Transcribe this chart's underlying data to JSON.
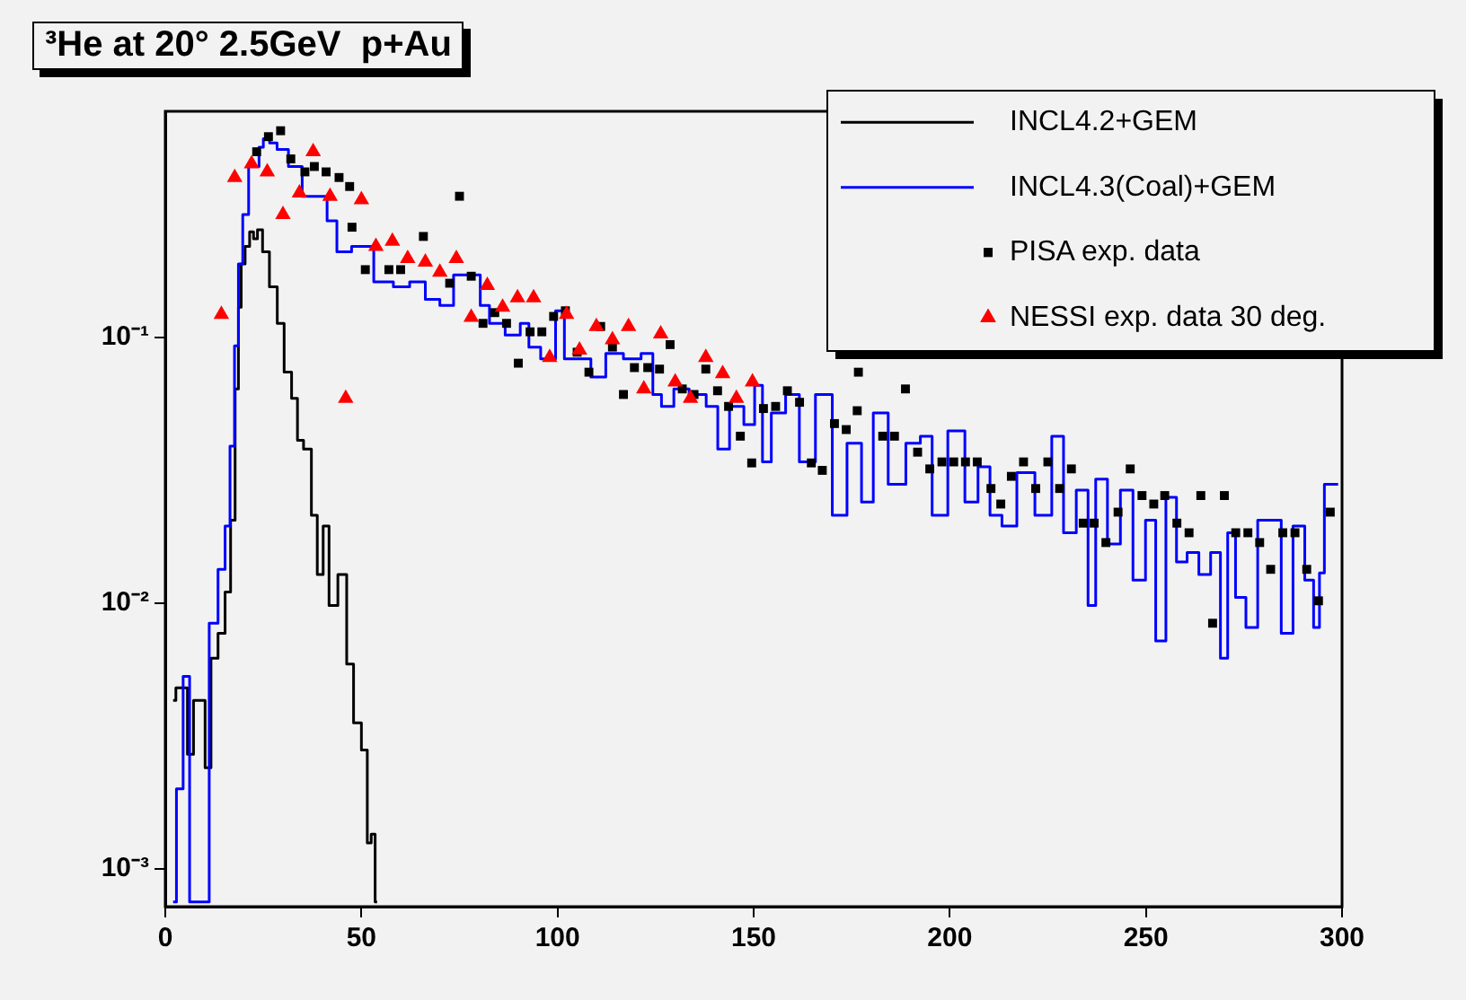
{
  "chart_data": {
    "type": "scatter",
    "title": "³He at 20° 2.5GeV  p+Au",
    "xlim": [
      0,
      300
    ],
    "xticks": [
      0,
      50,
      100,
      150,
      200,
      250,
      300
    ],
    "ylim": [
      0.00072,
      0.71
    ],
    "log": "y",
    "yticks": [
      {
        "value": 0.001,
        "label": "10⁻³"
      },
      {
        "value": 0.01,
        "label": "10⁻²"
      },
      {
        "value": 0.1,
        "label": "10⁻¹"
      }
    ],
    "grid": false,
    "legend": "top right",
    "series": [
      {
        "name": "INCL4.2+GEM",
        "type": "step",
        "color": "#000000",
        "marker": "none",
        "line_style": "solid",
        "x": [
          2,
          3.4,
          4.9,
          6.4,
          8,
          9.4,
          10.9,
          12.4,
          14.5,
          16,
          17.3,
          18.3,
          19,
          19.7,
          21,
          22,
          23,
          24,
          25.6,
          27.5,
          29.6,
          31,
          33.4,
          34,
          36.5,
          38,
          39.5,
          41,
          42.5,
          45.5,
          47,
          49,
          51,
          52,
          53,
          54
        ],
        "values": [
          0.0043,
          0.0048,
          0.0048,
          0.0027,
          0.0043,
          0.0043,
          0.0024,
          0.0062,
          0.0077,
          0.011,
          0.0205,
          0.064,
          0.13,
          0.189,
          0.22,
          0.25,
          0.235,
          0.254,
          0.21,
          0.155,
          0.113,
          0.074,
          0.059,
          0.041,
          0.038,
          0.0214,
          0.0128,
          0.0195,
          0.0098,
          0.0128,
          0.0059,
          0.00354,
          0.0028,
          0.00125,
          0.00135,
          0.00075
        ]
      },
      {
        "name": "INCL4.3(Coal)+GEM",
        "type": "step",
        "color": "#0000ff",
        "marker": "none",
        "line_style": "solid",
        "x": [
          2,
          3.7,
          5.4,
          7,
          10,
          12.4,
          14.5,
          16,
          17,
          18.3,
          19,
          20.5,
          22,
          23.5,
          24.3,
          25.7,
          27.5,
          29.5,
          33.3,
          36.5,
          40,
          42.5,
          45,
          50,
          56.3,
          60,
          64.6,
          68,
          72,
          75,
          79.6,
          81,
          84.3,
          89,
          92,
          93.4,
          98,
          101,
          102.5,
          107,
          110,
          114.6,
          119,
          123.6,
          125,
          128,
          131.3,
          135.8,
          140,
          141.7,
          146,
          149,
          151.5,
          153,
          156,
          160.3,
          163,
          168.5,
          171.6,
          176,
          179,
          182,
          186.6,
          191,
          194,
          197,
          202,
          205.7,
          208.7,
          211.8,
          214.8,
          219.4,
          224,
          228,
          230,
          234.5,
          236,
          238.4,
          242,
          245,
          248.4,
          251.4,
          253.6,
          256.6,
          259,
          262,
          265,
          268,
          270,
          271.7,
          274,
          277,
          280,
          283,
          286,
          289,
          292,
          293.5,
          295,
          296,
          299
        ],
        "values": [
          0.00075,
          0.002,
          0.0053,
          0.00075,
          0.00075,
          0.0084,
          0.0134,
          0.0195,
          0.039,
          0.093,
          0.189,
          0.29,
          0.44,
          0.44,
          0.52,
          0.56,
          0.54,
          0.51,
          0.44,
          0.34,
          0.34,
          0.275,
          0.21,
          0.22,
          0.162,
          0.155,
          0.162,
          0.139,
          0.132,
          0.172,
          0.172,
          0.132,
          0.113,
          0.102,
          0.113,
          0.092,
          0.083,
          0.126,
          0.083,
          0.083,
          0.071,
          0.087,
          0.083,
          0.087,
          0.061,
          0.055,
          0.064,
          0.061,
          0.055,
          0.038,
          0.055,
          0.047,
          0.066,
          0.034,
          0.052,
          0.061,
          0.034,
          0.061,
          0.0214,
          0.04,
          0.024,
          0.052,
          0.028,
          0.04,
          0.0425,
          0.0214,
          0.0445,
          0.024,
          0.0326,
          0.0214,
          0.0195,
          0.031,
          0.0214,
          0.0425,
          0.0184,
          0.0266,
          0.0098,
          0.0293,
          0.0167,
          0.0266,
          0.0122,
          0.0205,
          0.0072,
          0.025,
          0.0143,
          0.0155,
          0.0128,
          0.0155,
          0.0062,
          0.0184,
          0.0105,
          0.0081,
          0.0205,
          0.0205,
          0.0077,
          0.0195,
          0.0122,
          0.0081,
          0.013,
          0.028,
          0.028
        ]
      },
      {
        "name": "PISA exp. data",
        "type": "scatter",
        "color": "#000000",
        "marker": "square",
        "x": [
          23.3,
          26.3,
          29.4,
          32,
          35.6,
          38,
          41,
          44.3,
          47,
          47.6,
          51,
          57,
          60,
          65.8,
          72.5,
          75,
          78,
          81,
          84,
          87,
          90,
          93,
          96,
          99,
          102,
          105,
          108,
          111,
          114,
          116.8,
          119.6,
          123,
          126,
          128.7,
          131.8,
          134.8,
          137.8,
          140.8,
          143.6,
          146.6,
          149.5,
          152.5,
          155.6,
          158.6,
          161.7,
          164.7,
          167.5,
          170.6,
          173.6,
          176.4,
          176.7,
          182.9,
          185.9,
          188.7,
          191.8,
          194.9,
          198,
          201,
          204,
          207,
          210.5,
          213,
          215.7,
          218.8,
          221.9,
          225,
          228,
          231,
          234,
          236.8,
          239.8,
          242.9,
          246,
          249,
          252,
          254.8,
          257.9,
          261,
          264,
          267,
          270,
          272.9,
          276,
          279,
          281.8,
          284.9,
          288,
          291,
          294,
          297
        ],
        "values": [
          0.5,
          0.57,
          0.6,
          0.47,
          0.42,
          0.44,
          0.42,
          0.4,
          0.37,
          0.26,
          0.18,
          0.18,
          0.18,
          0.24,
          0.16,
          0.34,
          0.17,
          0.113,
          0.124,
          0.113,
          0.08,
          0.105,
          0.105,
          0.12,
          0.126,
          0.088,
          0.074,
          0.11,
          0.092,
          0.061,
          0.077,
          0.077,
          0.076,
          0.094,
          0.064,
          0.061,
          0.076,
          0.063,
          0.055,
          0.0425,
          0.0337,
          0.054,
          0.055,
          0.063,
          0.057,
          0.0337,
          0.0316,
          0.0474,
          0.045,
          0.053,
          0.074,
          0.0425,
          0.0425,
          0.064,
          0.037,
          0.032,
          0.034,
          0.034,
          0.034,
          0.034,
          0.027,
          0.0236,
          0.03,
          0.034,
          0.027,
          0.034,
          0.027,
          0.032,
          0.02,
          0.02,
          0.0169,
          0.022,
          0.032,
          0.0254,
          0.0236,
          0.0254,
          0.02,
          0.0184,
          0.0254,
          0.0084,
          0.0254,
          0.0184,
          0.0184,
          0.0169,
          0.0134,
          0.0184,
          0.0184,
          0.0134,
          0.0102,
          0.022
        ]
      },
      {
        "name": "NESSI exp. data 30 deg.",
        "type": "scatter",
        "color": "#ff0000",
        "marker": "triangle",
        "x": [
          14.3,
          17.7,
          22,
          26,
          30,
          34.2,
          37.7,
          42,
          46,
          50,
          53.7,
          57.9,
          61.8,
          66.3,
          70,
          74.2,
          78,
          82.1,
          86,
          89.8,
          93.9,
          98,
          102.3,
          105.6,
          109.9,
          114,
          118.1,
          122,
          126.3,
          130,
          133.9,
          137.8,
          142.1,
          145.6,
          149.7
        ],
        "values": [
          0.122,
          0.4,
          0.45,
          0.42,
          0.29,
          0.35,
          0.5,
          0.34,
          0.059,
          0.33,
          0.22,
          0.23,
          0.198,
          0.192,
          0.176,
          0.198,
          0.119,
          0.157,
          0.13,
          0.141,
          0.141,
          0.084,
          0.122,
          0.0897,
          0.11,
          0.098,
          0.11,
          0.064,
          0.103,
          0.068,
          0.059,
          0.084,
          0.073,
          0.059,
          0.068
        ]
      }
    ]
  }
}
